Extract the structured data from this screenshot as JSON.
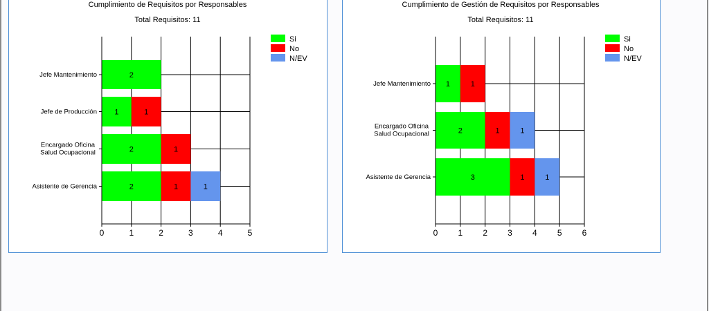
{
  "colors": {
    "si": "#00ff00",
    "no": "#ff0000",
    "nev": "#6495ed",
    "frame": "#4f90d6"
  },
  "chart_data": [
    {
      "type": "bar",
      "orientation": "horizontal",
      "stacked": true,
      "title": "Cumplimiento de Requisitos por Responsables",
      "subtitle": "Total Requisitos: 11",
      "categories": [
        "Asistente de Gerencia",
        "Encargado Oficina Salud Ocupacional",
        "Jefe de Producción",
        "Jefe Mantenimiento"
      ],
      "category_lines": [
        [
          "Asistente de Gerencia"
        ],
        [
          "Encargado Oficina",
          "Salud Ocupacional"
        ],
        [
          "Jefe de Producción"
        ],
        [
          "Jefe Mantenimiento"
        ]
      ],
      "series": [
        {
          "name": "Si",
          "values": [
            2,
            2,
            1,
            2
          ]
        },
        {
          "name": "No",
          "values": [
            1,
            1,
            1,
            0
          ]
        },
        {
          "name": "N/EV",
          "values": [
            1,
            0,
            0,
            0
          ]
        }
      ],
      "xlim": [
        0,
        5
      ],
      "xticks": [
        "0",
        "1",
        "2",
        "3",
        "4",
        "5"
      ],
      "grid": true,
      "legend": "top-right"
    },
    {
      "type": "bar",
      "orientation": "horizontal",
      "stacked": true,
      "title": "Cumplimiento de Gestión de Requisitos por Responsables",
      "subtitle": "Total Requisitos: 11",
      "categories": [
        "Asistente de Gerencia",
        "Encargado Oficina Salud Ocupacional",
        "Jefe Mantenimiento"
      ],
      "category_lines": [
        [
          "Asistente de Gerencia"
        ],
        [
          "Encargado Oficina",
          "Salud Ocupacional"
        ],
        [
          "Jefe Mantenimiento"
        ]
      ],
      "series": [
        {
          "name": "Si",
          "values": [
            3,
            2,
            1
          ]
        },
        {
          "name": "No",
          "values": [
            1,
            1,
            1
          ]
        },
        {
          "name": "N/EV",
          "values": [
            1,
            1,
            0
          ]
        }
      ],
      "xlim": [
        0,
        6
      ],
      "xticks": [
        "0",
        "1",
        "2",
        "3",
        "4",
        "5",
        "6"
      ],
      "grid": true,
      "legend": "top-right"
    }
  ]
}
